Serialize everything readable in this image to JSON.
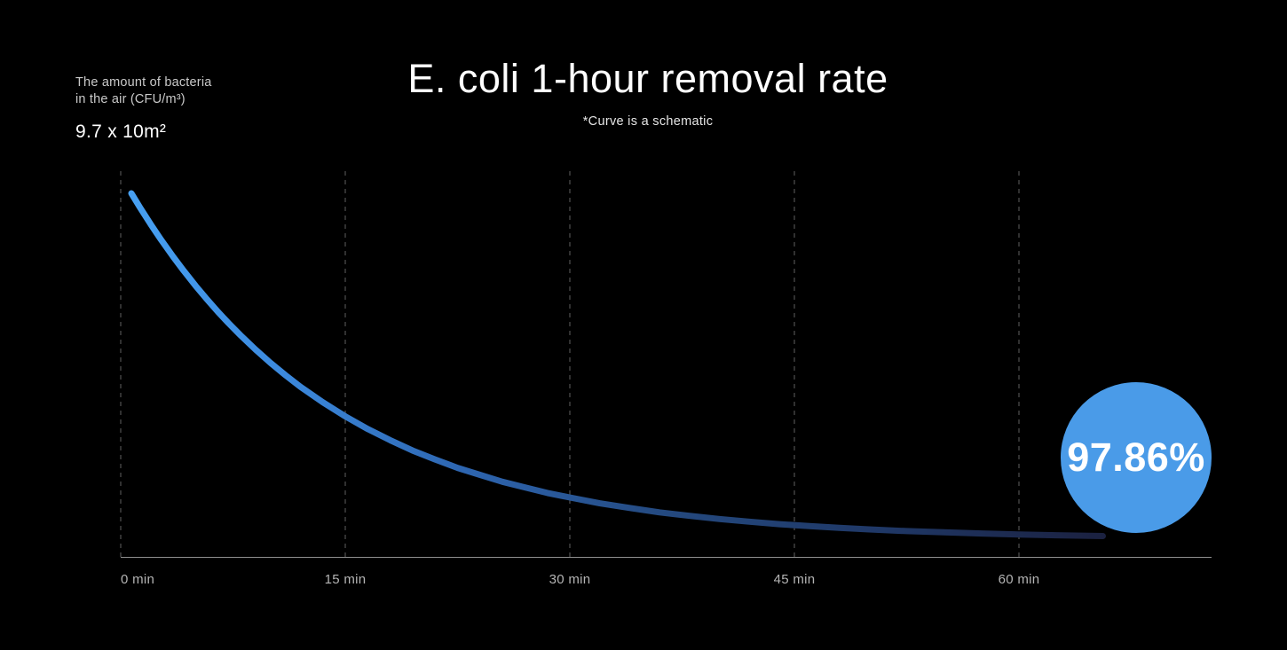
{
  "header": {
    "title": "E. coli 1-hour removal rate",
    "subtitle": "*Curve is a schematic"
  },
  "y_axis_label": {
    "line1": "The amount of bacteria",
    "line2": "in the air (CFU/m³)",
    "area": "9.7 x 10m²"
  },
  "badge": {
    "value": "97.86%",
    "color": "#4a9be8"
  },
  "chart_data": {
    "type": "line",
    "title": "E. coli 1-hour removal rate",
    "subtitle": "*Curve is a schematic",
    "ylabel": "The amount of bacteria in the air (CFU/m³)",
    "room_size": "9.7 x 10m²",
    "removal_rate_annotation": "97.86%",
    "x_unit": "min",
    "xlim_minutes": [
      0,
      73
    ],
    "grid": "dashed-vertical",
    "x_ticks": [
      {
        "minute": 0,
        "label": "0 min"
      },
      {
        "minute": 15,
        "label": "15 min"
      },
      {
        "minute": 30,
        "label": "30 min"
      },
      {
        "minute": 45,
        "label": "45 min"
      },
      {
        "minute": 60,
        "label": "60 min"
      }
    ],
    "curve": {
      "description": "Relative bacteria amount vs time (schematic exponential decay, ~97.86% removed at 60 min)",
      "gradient": [
        {
          "offset": "0%",
          "color": "#47a0f2"
        },
        {
          "offset": "15%",
          "color": "#3c8ade"
        },
        {
          "offset": "35%",
          "color": "#2d64ae"
        },
        {
          "offset": "55%",
          "color": "#24497f"
        },
        {
          "offset": "78%",
          "color": "#1f3765"
        },
        {
          "offset": "100%",
          "color": "#1b2140"
        }
      ],
      "points": [
        [
          0.71,
          1.0
        ],
        [
          1.3,
          0.9581
        ],
        [
          2,
          0.9107
        ],
        [
          2.7,
          0.8657
        ],
        [
          3.5,
          0.8169
        ],
        [
          4.2,
          0.7766
        ],
        [
          5,
          0.7327
        ],
        [
          5.7,
          0.6966
        ],
        [
          6.5,
          0.6572
        ],
        [
          7.2,
          0.6248
        ],
        [
          8,
          0.5897
        ],
        [
          9,
          0.5484
        ],
        [
          10,
          0.5097
        ],
        [
          11,
          0.4744
        ],
        [
          12,
          0.4408
        ],
        [
          13.5,
          0.3958
        ],
        [
          15,
          0.3552
        ],
        [
          16.5,
          0.3185
        ],
        [
          18,
          0.2862
        ],
        [
          19.5,
          0.2562
        ],
        [
          21,
          0.2306
        ],
        [
          22.5,
          0.2062
        ],
        [
          24,
          0.1858
        ],
        [
          25.5,
          0.1659
        ],
        [
          27,
          0.1497
        ],
        [
          28.5,
          0.1335
        ],
        [
          30,
          0.1206
        ],
        [
          32,
          0.1035
        ],
        [
          34,
          0.0903
        ],
        [
          36,
          0.0775
        ],
        [
          38,
          0.0675
        ],
        [
          40,
          0.0581
        ],
        [
          42,
          0.0505
        ],
        [
          44,
          0.0434
        ],
        [
          46,
          0.0378
        ],
        [
          48,
          0.0325
        ],
        [
          50,
          0.0283
        ],
        [
          52.5,
          0.0234
        ],
        [
          55,
          0.0197
        ],
        [
          57.5,
          0.0163
        ],
        [
          60,
          0.0137
        ],
        [
          62.5,
          0.0113
        ],
        [
          65.6,
          0.0091
        ]
      ]
    }
  }
}
